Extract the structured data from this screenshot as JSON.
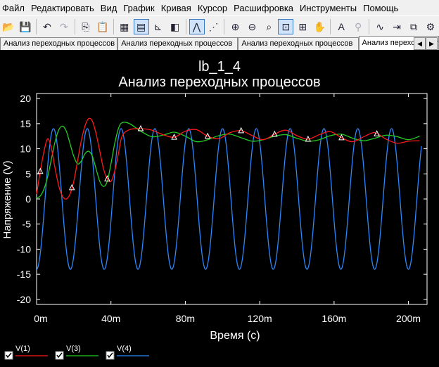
{
  "menu": [
    "Файл",
    "Редактировать",
    "Вид",
    "График",
    "Кривая",
    "Курсор",
    "Расшифровка",
    "Инструменты",
    "Помощь"
  ],
  "toolbar": {
    "icons": [
      "open-icon",
      "save-icon",
      "undo-icon",
      "redo-icon",
      "copy-icon",
      "paste-icon",
      "grid-icon",
      "legend-icon",
      "axis-icon",
      "reverse-colors-icon",
      "trace-icon",
      "marker-icon",
      "zoom-in-icon",
      "zoom-out-icon",
      "zoom-fit-icon",
      "zoom-region-icon",
      "zoom-x-icon",
      "pan-icon",
      "text-icon",
      "probe-icon",
      "fft-icon",
      "export-icon",
      "copy-image-icon",
      "settings-icon"
    ]
  },
  "tabs": [
    "Анализ переходных процессов",
    "Анализ переходных процессов",
    "Анализ переходных процессов",
    "Анализ переходных процессов"
  ],
  "chart_data": {
    "type": "line",
    "title": "lb_1_4",
    "subtitle": "Анализ переходных процессов",
    "xlabel": "Время (с)",
    "ylabel": "Напряжение (V)",
    "xlim": [
      0,
      0.21
    ],
    "ylim": [
      -21,
      21
    ],
    "x_ticks": [
      "0m",
      "40m",
      "80m",
      "120m",
      "160m",
      "200m"
    ],
    "y_ticks": [
      "20",
      "15",
      "10",
      "5",
      "0",
      "-5",
      "-10",
      "-15",
      "-20"
    ],
    "grid": false,
    "legend_position": "bottom-left",
    "background": "#000000",
    "foreground": "#ffffff",
    "series": [
      {
        "name": "V(1)",
        "color": "#ff1a1a",
        "x": [
          0,
          0.002,
          0.004,
          0.006,
          0.008,
          0.01,
          0.012,
          0.014,
          0.016,
          0.018,
          0.02,
          0.022,
          0.024,
          0.026,
          0.028,
          0.03,
          0.032,
          0.034,
          0.036,
          0.038,
          0.04,
          0.042,
          0.044,
          0.046,
          0.05,
          0.056,
          0.062,
          0.068,
          0.074,
          0.08,
          0.086,
          0.092,
          0.098,
          0.104,
          0.11,
          0.116,
          0.122,
          0.128,
          0.134,
          0.14,
          0.146,
          0.152,
          0.158,
          0.164,
          0.17,
          0.176,
          0.182,
          0.188,
          0.194,
          0.2,
          0.206
        ],
        "values": [
          1.0,
          5.5,
          9.5,
          12.0,
          10.0,
          6.0,
          2.5,
          0.5,
          0.0,
          1.0,
          3.5,
          7.5,
          11.5,
          14.5,
          16.0,
          15.5,
          13.0,
          9.5,
          6.0,
          4.0,
          3.5,
          5.5,
          9.0,
          12.5,
          13.8,
          14.0,
          13.7,
          12.8,
          12.3,
          13.5,
          13.8,
          12.5,
          12.0,
          13.2,
          13.6,
          12.6,
          11.8,
          12.9,
          13.7,
          12.6,
          11.9,
          12.8,
          13.4,
          12.2,
          11.4,
          12.4,
          13.2,
          11.9,
          11.1,
          11.5,
          11.6
        ]
      },
      {
        "name": "V(3)",
        "color": "#22cc22",
        "x": [
          0,
          0.002,
          0.004,
          0.006,
          0.008,
          0.01,
          0.012,
          0.014,
          0.016,
          0.018,
          0.02,
          0.022,
          0.024,
          0.026,
          0.028,
          0.03,
          0.032,
          0.034,
          0.036,
          0.038,
          0.04,
          0.042,
          0.044,
          0.046,
          0.05,
          0.056,
          0.062,
          0.068,
          0.074,
          0.08,
          0.086,
          0.092,
          0.098,
          0.104,
          0.11,
          0.116,
          0.122,
          0.128,
          0.134,
          0.14,
          0.146,
          0.152,
          0.158,
          0.164,
          0.17,
          0.176,
          0.182,
          0.188,
          0.194,
          0.2,
          0.206
        ],
        "values": [
          0.2,
          0.6,
          2.0,
          4.5,
          8.0,
          11.5,
          13.8,
          14.5,
          13.5,
          11.0,
          8.5,
          7.0,
          7.5,
          9.0,
          9.5,
          8.5,
          6.0,
          3.5,
          2.5,
          3.5,
          7.0,
          11.0,
          14.0,
          15.2,
          15.0,
          13.5,
          12.4,
          12.7,
          13.3,
          12.5,
          11.4,
          11.8,
          12.6,
          12.9,
          12.2,
          11.5,
          11.8,
          12.5,
          12.8,
          12.1,
          11.5,
          11.8,
          12.6,
          12.9,
          12.1,
          11.6,
          12.1,
          12.7,
          12.4,
          11.8,
          12.5
        ]
      },
      {
        "name": "V(4)",
        "color": "#2a88ff",
        "frequency_hz": 55,
        "amplitude": 14,
        "phase_deg": -90,
        "x_start": 0,
        "x_end": 0.207
      }
    ],
    "markers": {
      "V(1)": [
        0.002,
        0.019,
        0.038,
        0.056,
        0.074,
        0.092,
        0.11,
        0.128,
        0.146,
        0.164,
        0.183
      ],
      "marker_symbol": "triangle"
    }
  }
}
